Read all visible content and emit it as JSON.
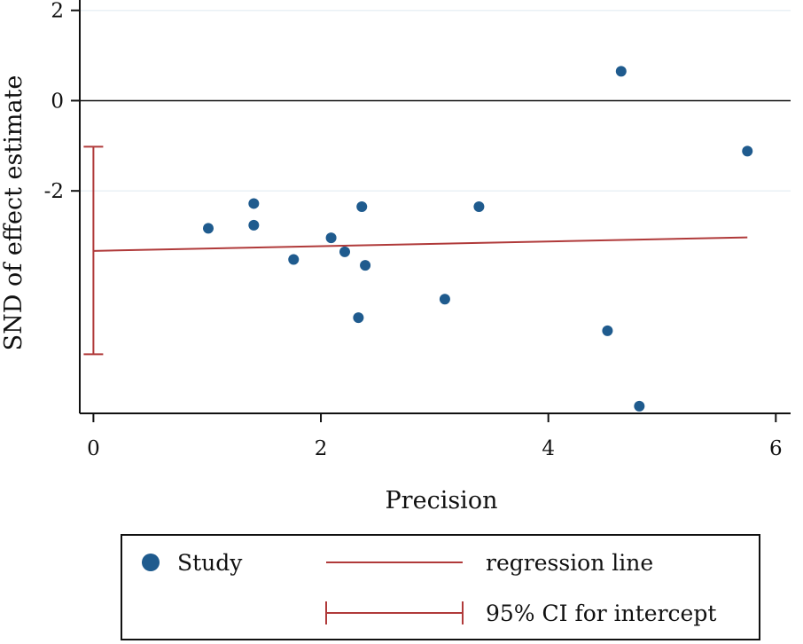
{
  "chart_data": {
    "type": "scatter",
    "xlabel": "Precision",
    "ylabel": "SND of effect estimate",
    "xlim": [
      -0.12,
      6.13
    ],
    "ylim": [
      -6.93,
      2.23
    ],
    "x_ticks": [
      0,
      2,
      4,
      6
    ],
    "x_tick_labels": [
      "0",
      "2",
      "4",
      "6"
    ],
    "y_ticks": [
      2,
      0,
      -2
    ],
    "y_tick_labels": [
      "2",
      "0",
      "-2"
    ],
    "grid": "horizontal",
    "legend_position": "bottom",
    "series": [
      {
        "name": "Study",
        "kind": "points",
        "color": "#1f5b8e",
        "points": [
          {
            "x": 1.01,
            "y": -2.83
          },
          {
            "x": 1.41,
            "y": -2.28
          },
          {
            "x": 1.41,
            "y": -2.76
          },
          {
            "x": 1.76,
            "y": -3.52
          },
          {
            "x": 2.09,
            "y": -3.04
          },
          {
            "x": 2.21,
            "y": -3.35
          },
          {
            "x": 2.33,
            "y": -4.81
          },
          {
            "x": 2.36,
            "y": -2.35
          },
          {
            "x": 2.39,
            "y": -3.65
          },
          {
            "x": 3.09,
            "y": -4.4
          },
          {
            "x": 3.39,
            "y": -2.35
          },
          {
            "x": 4.52,
            "y": -5.1
          },
          {
            "x": 4.64,
            "y": 0.65
          },
          {
            "x": 4.8,
            "y": -6.77
          },
          {
            "x": 5.75,
            "y": -1.12
          }
        ]
      },
      {
        "name": "regression line",
        "kind": "line",
        "color": "#b03a3a",
        "x": [
          0,
          5.75
        ],
        "y": [
          -3.33,
          -3.03
        ]
      },
      {
        "name": "95% CI for intercept",
        "kind": "errorbar",
        "color": "#b03a3a",
        "x": 0,
        "low": -5.62,
        "high": -1.02
      }
    ]
  }
}
